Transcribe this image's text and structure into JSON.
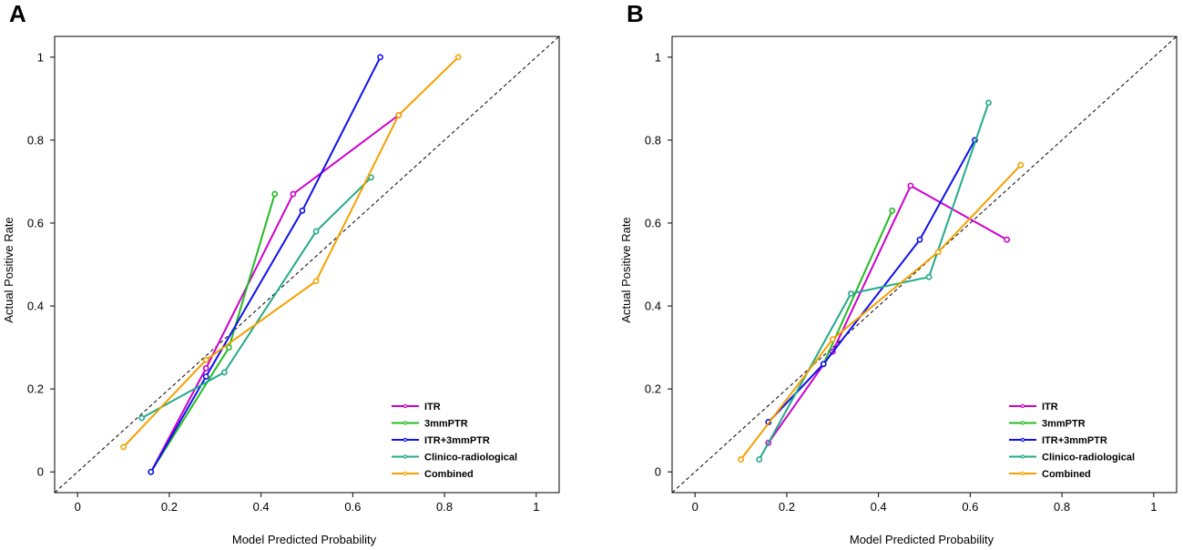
{
  "figure": {
    "colors": {
      "ITR": "#cc00cc",
      "3mmPTR": "#22bb22",
      "ITR+3mmPTR": "#1010ee",
      "Clinico-radiological": "#22aa88",
      "Combined": "#f5a000"
    }
  },
  "chart_data": [
    {
      "panel": "A",
      "type": "line",
      "xlabel": "Model Predicted Probability",
      "ylabel": "Actual Positive Rate",
      "xlim": [
        -0.05,
        1.05
      ],
      "ylim": [
        -0.05,
        1.05
      ],
      "xticks": [
        0,
        0.2,
        0.4,
        0.6,
        0.8,
        1
      ],
      "xtick_labels": [
        "0",
        "0.2",
        "0.4",
        "0.6",
        "0.8",
        "1"
      ],
      "yticks": [
        0,
        0.2,
        0.4,
        0.6,
        0.8,
        1
      ],
      "ytick_labels": [
        "0",
        "0.2",
        "0.4",
        "0.6",
        "0.8",
        "1"
      ],
      "reference_line": "diagonal",
      "legend_position": "bottom-right",
      "series": [
        {
          "name": "ITR",
          "x": [
            0.16,
            0.28,
            0.47,
            0.7
          ],
          "y": [
            0.0,
            0.25,
            0.67,
            0.86
          ]
        },
        {
          "name": "3mmPTR",
          "x": [
            0.16,
            0.33,
            0.43
          ],
          "y": [
            0.0,
            0.3,
            0.67
          ]
        },
        {
          "name": "ITR+3mmPTR",
          "x": [
            0.16,
            0.28,
            0.49,
            0.66
          ],
          "y": [
            0.0,
            0.23,
            0.63,
            1.0
          ]
        },
        {
          "name": "Clinico-radiological",
          "x": [
            0.14,
            0.32,
            0.52,
            0.64
          ],
          "y": [
            0.13,
            0.24,
            0.58,
            0.71
          ]
        },
        {
          "name": "Combined",
          "x": [
            0.1,
            0.28,
            0.52,
            0.7,
            0.83
          ],
          "y": [
            0.06,
            0.27,
            0.46,
            0.86,
            1.0
          ]
        }
      ]
    },
    {
      "panel": "B",
      "type": "line",
      "xlabel": "Model Predicted Probability",
      "ylabel": "Actual Positive Rate",
      "xlim": [
        -0.05,
        1.05
      ],
      "ylim": [
        -0.05,
        1.05
      ],
      "xticks": [
        0,
        0.2,
        0.4,
        0.6,
        0.8,
        1
      ],
      "xtick_labels": [
        "0",
        "0.2",
        "0.4",
        "0.6",
        "0.8",
        "1"
      ],
      "yticks": [
        0,
        0.2,
        0.4,
        0.6,
        0.8,
        1
      ],
      "ytick_labels": [
        "0",
        "0.2",
        "0.4",
        "0.6",
        "0.8",
        "1"
      ],
      "reference_line": "diagonal",
      "legend_position": "bottom-right",
      "series": [
        {
          "name": "ITR",
          "x": [
            0.16,
            0.3,
            0.47,
            0.68
          ],
          "y": [
            0.07,
            0.29,
            0.69,
            0.56
          ]
        },
        {
          "name": "3mmPTR",
          "x": [
            0.16,
            0.28,
            0.43
          ],
          "y": [
            0.12,
            0.26,
            0.63
          ]
        },
        {
          "name": "ITR+3mmPTR",
          "x": [
            0.16,
            0.28,
            0.49,
            0.61
          ],
          "y": [
            0.12,
            0.26,
            0.56,
            0.8
          ]
        },
        {
          "name": "Clinico-radiological",
          "x": [
            0.14,
            0.34,
            0.51,
            0.64
          ],
          "y": [
            0.03,
            0.43,
            0.47,
            0.89
          ]
        },
        {
          "name": "Combined",
          "x": [
            0.1,
            0.3,
            0.53,
            0.71
          ],
          "y": [
            0.03,
            0.32,
            0.53,
            0.74
          ]
        }
      ]
    }
  ]
}
